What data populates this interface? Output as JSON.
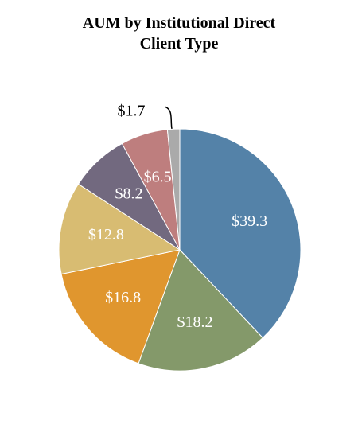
{
  "chart_data": {
    "type": "pie",
    "title": "AUM by Institutional Direct Client Type",
    "values": [
      39.3,
      18.2,
      16.8,
      12.8,
      8.2,
      6.5,
      1.7
    ],
    "value_labels": [
      "$39.3",
      "$18.2",
      "$16.8",
      "$12.8",
      "$8.2",
      "$6.5",
      "$1.7"
    ],
    "colors": [
      "#5482a8",
      "#84996a",
      "#e0962e",
      "#d8bc72",
      "#72697f",
      "#be7e7e",
      "#aaaaaa"
    ]
  }
}
